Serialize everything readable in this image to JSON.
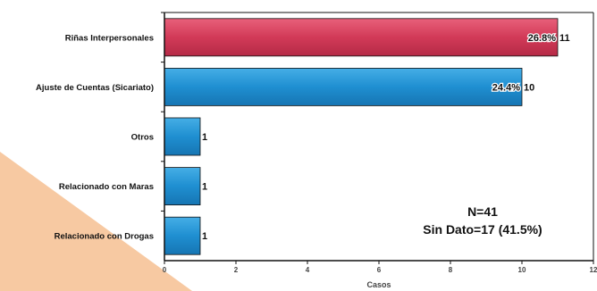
{
  "chart_data": {
    "type": "bar",
    "orientation": "horizontal",
    "categories": [
      "Riñas Interpersonales",
      "Ajuste de Cuentas (Sicariato)",
      "Otros",
      "Relacionado con Maras",
      "Relacionado con Drogas"
    ],
    "values": [
      11,
      10,
      1,
      1,
      1
    ],
    "percent_labels": [
      "26.8%",
      "24.4%",
      "",
      "",
      ""
    ],
    "bar_colors": [
      "#d23a58",
      "#1f8fd1",
      "#1f8fd1",
      "#1f8fd1",
      "#1f8fd1"
    ],
    "xlabel": "Casos",
    "ylabel": "",
    "xlim": [
      0,
      12
    ],
    "xticks": [
      0,
      2,
      4,
      6,
      8,
      10,
      12
    ],
    "grid": false,
    "annotations": {
      "line1": "N=41",
      "line2": "Sin Dato=17 (41.5%)"
    }
  },
  "colors": {
    "decor_triangle": "#f7c9a2",
    "axis": "#111111"
  }
}
